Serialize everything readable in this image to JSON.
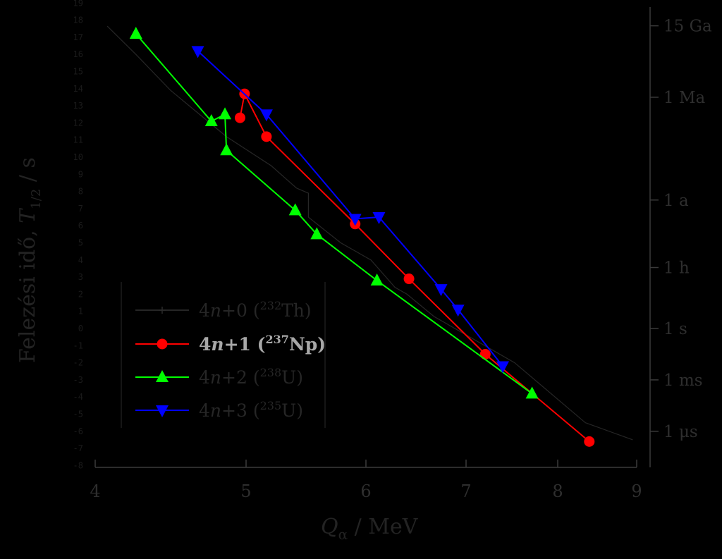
{
  "chart_data": {
    "type": "line",
    "xlabel_main": "Q",
    "xlabel_sub": "α",
    "xlabel_unit": " / MeV",
    "ylabel_text": "Felezési idő, ",
    "ylabel_var": "T",
    "ylabel_sub": "1/2",
    "ylabel_unit": " / s",
    "x_ticks": [
      "4",
      "5",
      "6",
      "7",
      "8",
      "9"
    ],
    "y_left_ticks": [
      "19",
      "18",
      "17",
      "16",
      "15",
      "14",
      "13",
      "12",
      "11",
      "10",
      "9",
      "8",
      "7",
      "6",
      "5",
      "4",
      "3",
      "2",
      "1",
      "0",
      "-1",
      "-2",
      "-3",
      "-4",
      "-5",
      "-6",
      "-7",
      "-8"
    ],
    "y_right_labels": [
      {
        "label": "15 Ga",
        "log10": 17.67
      },
      {
        "label": "1 Ma",
        "log10": 13.5
      },
      {
        "label": "1 a",
        "log10": 7.5
      },
      {
        "label": "1 h",
        "log10": 3.56
      },
      {
        "label": "1 s",
        "log10": 0
      },
      {
        "label": "1 ms",
        "log10": -3
      },
      {
        "label": "1 μs",
        "log10": -6
      }
    ],
    "legend_position": "bottom-left",
    "series": [
      {
        "name_prefix": "4",
        "name_var": "n",
        "name_mid": "+0 (",
        "name_sup": "232",
        "name_el": "Th)",
        "color": "#111111",
        "marker": "plus",
        "points": [
          [
            4.08,
            17.65
          ],
          [
            4.27,
            16.0
          ],
          [
            4.5,
            13.9
          ],
          [
            4.87,
            11.2
          ],
          [
            5.21,
            9.5
          ],
          [
            5.42,
            8.2
          ],
          [
            5.52,
            7.9
          ],
          [
            5.52,
            6.5
          ],
          [
            5.79,
            5.0
          ],
          [
            6.05,
            4.0
          ],
          [
            6.29,
            2.4
          ],
          [
            6.41,
            2.0
          ],
          [
            6.68,
            0.7
          ],
          [
            7.53,
            -2.0
          ],
          [
            8.35,
            -5.5
          ],
          [
            8.95,
            -6.5
          ]
        ]
      },
      {
        "name_prefix": "4",
        "name_var": "n",
        "name_mid": "+1 (",
        "name_sup": "237",
        "name_el": "Np)",
        "color": "#ff0000",
        "marker": "circle",
        "points": [
          [
            4.96,
            12.3
          ],
          [
            4.99,
            13.7
          ],
          [
            5.17,
            11.2
          ],
          [
            5.91,
            6.1
          ],
          [
            6.43,
            2.9
          ],
          [
            7.21,
            -1.5
          ],
          [
            8.4,
            -6.6
          ]
        ]
      },
      {
        "name_prefix": "4",
        "name_var": "n",
        "name_mid": "+2 (",
        "name_sup": "238",
        "name_el": "U)",
        "color": "#00ff00",
        "marker": "triangle-up",
        "points": [
          [
            4.27,
            17.2
          ],
          [
            4.77,
            12.1
          ],
          [
            4.86,
            12.5
          ],
          [
            4.87,
            10.4
          ],
          [
            5.41,
            6.9
          ],
          [
            5.59,
            5.5
          ],
          [
            6.11,
            2.8
          ],
          [
            7.72,
            -3.8
          ]
        ]
      },
      {
        "name_prefix": "4",
        "name_var": "n",
        "name_mid": "+3 (",
        "name_sup": "235",
        "name_el": "U)",
        "color": "#0000ff",
        "marker": "triangle-down",
        "points": [
          [
            4.68,
            16.2
          ],
          [
            5.17,
            12.5
          ],
          [
            5.91,
            6.4
          ],
          [
            6.13,
            6.5
          ],
          [
            6.75,
            2.3
          ],
          [
            6.92,
            1.1
          ],
          [
            7.4,
            -2.2
          ]
        ]
      }
    ]
  }
}
